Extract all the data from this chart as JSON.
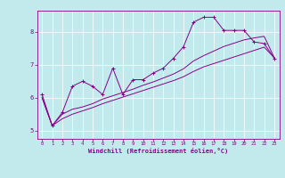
{
  "xlabel": "Windchill (Refroidissement éolien,°C)",
  "bg_color": "#c2eaed",
  "line_color": "#880088",
  "grid_color": "#ffffff",
  "xlim": [
    -0.5,
    23.5
  ],
  "ylim": [
    4.75,
    8.65
  ],
  "xticks": [
    0,
    1,
    2,
    3,
    4,
    5,
    6,
    7,
    8,
    9,
    10,
    11,
    12,
    13,
    14,
    15,
    16,
    17,
    18,
    19,
    20,
    21,
    22,
    23
  ],
  "yticks": [
    5,
    6,
    7,
    8
  ],
  "line1_x": [
    0,
    1,
    2,
    3,
    4,
    5,
    6,
    7,
    8,
    9,
    10,
    11,
    12,
    13,
    14,
    15,
    16,
    17,
    18,
    19,
    20,
    21,
    22,
    23
  ],
  "line1_y": [
    6.1,
    5.15,
    5.55,
    6.35,
    6.5,
    6.35,
    6.1,
    6.9,
    6.1,
    6.55,
    6.55,
    6.75,
    6.9,
    7.2,
    7.55,
    8.3,
    8.45,
    8.45,
    8.05,
    8.05,
    8.05,
    7.7,
    7.65,
    7.2
  ],
  "line2_x": [
    0,
    1,
    2,
    3,
    4,
    5,
    6,
    7,
    8,
    9,
    10,
    11,
    12,
    13,
    14,
    15,
    16,
    17,
    18,
    19,
    20,
    21,
    22,
    23
  ],
  "line2_y": [
    6.0,
    5.15,
    5.5,
    5.65,
    5.72,
    5.82,
    5.96,
    6.06,
    6.16,
    6.26,
    6.38,
    6.48,
    6.6,
    6.72,
    6.88,
    7.12,
    7.28,
    7.42,
    7.56,
    7.66,
    7.76,
    7.82,
    7.87,
    7.22
  ],
  "line3_x": [
    0,
    1,
    2,
    3,
    4,
    5,
    6,
    7,
    8,
    9,
    10,
    11,
    12,
    13,
    14,
    15,
    16,
    17,
    18,
    19,
    20,
    21,
    22,
    23
  ],
  "line3_y": [
    6.0,
    5.15,
    5.36,
    5.5,
    5.6,
    5.7,
    5.82,
    5.92,
    6.02,
    6.12,
    6.22,
    6.32,
    6.42,
    6.52,
    6.64,
    6.8,
    6.94,
    7.04,
    7.14,
    7.24,
    7.34,
    7.44,
    7.54,
    7.22
  ]
}
